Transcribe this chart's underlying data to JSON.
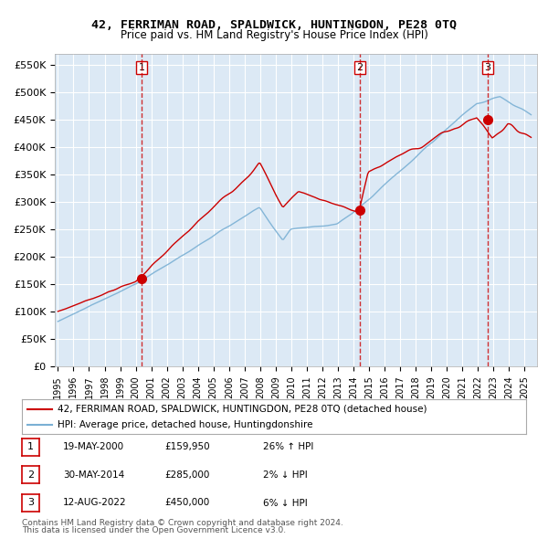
{
  "title": "42, FERRIMAN ROAD, SPALDWICK, HUNTINGDON, PE28 0TQ",
  "subtitle": "Price paid vs. HM Land Registry's House Price Index (HPI)",
  "bg_color": "#dce9f5",
  "plot_bg_color": "#dce9f5",
  "grid_color": "#ffffff",
  "red_line_color": "#cc0000",
  "blue_line_color": "#7ab0d4",
  "sale_marker_color": "#cc0000",
  "vline_color": "#cc0000",
  "ylim": [
    0,
    570000
  ],
  "yticks": [
    0,
    50000,
    100000,
    150000,
    200000,
    250000,
    300000,
    350000,
    400000,
    450000,
    500000,
    550000
  ],
  "ytick_labels": [
    "£0",
    "£50K",
    "£100K",
    "£150K",
    "£200K",
    "£250K",
    "£300K",
    "£350K",
    "£400K",
    "£450K",
    "£500K",
    "£550K"
  ],
  "sales": [
    {
      "date_num": 2000.38,
      "price": 159950,
      "label": "1"
    },
    {
      "date_num": 2014.41,
      "price": 285000,
      "label": "2"
    },
    {
      "date_num": 2022.62,
      "price": 450000,
      "label": "3"
    }
  ],
  "sale_table": [
    {
      "num": "1",
      "date": "19-MAY-2000",
      "price": "£159,950",
      "hpi": "26% ↑ HPI"
    },
    {
      "num": "2",
      "date": "30-MAY-2014",
      "price": "£285,000",
      "hpi": "2% ↓ HPI"
    },
    {
      "num": "3",
      "date": "12-AUG-2022",
      "price": "£450,000",
      "hpi": "6% ↓ HPI"
    }
  ],
  "legend_line1": "42, FERRIMAN ROAD, SPALDWICK, HUNTINGDON, PE28 0TQ (detached house)",
  "legend_line2": "HPI: Average price, detached house, Huntingdonshire",
  "footer1": "Contains HM Land Registry data © Crown copyright and database right 2024.",
  "footer2": "This data is licensed under the Open Government Licence v3.0."
}
